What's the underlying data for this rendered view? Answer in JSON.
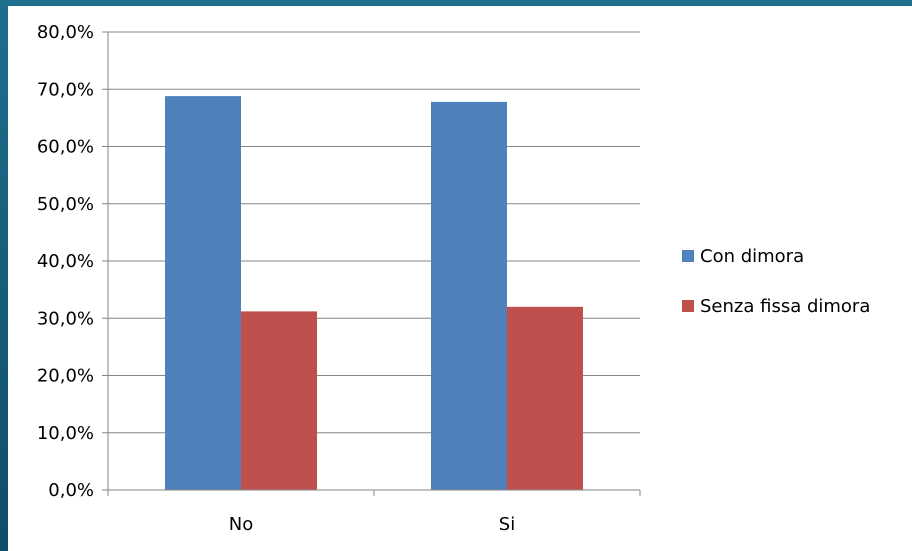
{
  "chart_data": {
    "type": "bar",
    "categories": [
      "No",
      "Si"
    ],
    "series": [
      {
        "name": "Con dimora",
        "color": "#4f81bd",
        "values": [
          68.8,
          67.8
        ]
      },
      {
        "name": "Senza fissa dimora",
        "color": "#c0504d",
        "values": [
          31.2,
          32.0
        ]
      }
    ],
    "ylim": [
      0,
      80
    ],
    "yticks": [
      0,
      10,
      20,
      30,
      40,
      50,
      60,
      70,
      80
    ],
    "ytick_labels": [
      "0,0%",
      "10,0%",
      "20,0%",
      "30,0%",
      "40,0%",
      "50,0%",
      "60,0%",
      "70,0%",
      "80,0%"
    ],
    "grid": true,
    "legend_position": "right",
    "title": "",
    "xlabel": "",
    "ylabel": ""
  }
}
